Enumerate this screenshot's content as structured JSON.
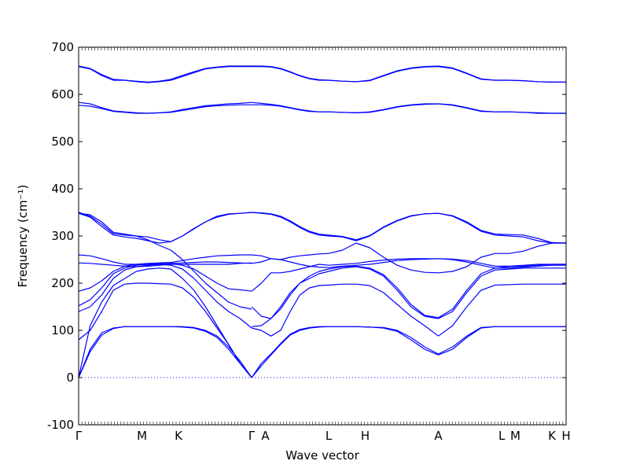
{
  "chart_data": {
    "type": "line",
    "xlabel": "Wave vector",
    "ylabel": "Frequency (cm⁻¹)",
    "ylim": [
      -100,
      700
    ],
    "grid": false,
    "y_ticks": [
      -100,
      0,
      100,
      200,
      300,
      400,
      500,
      600,
      700
    ],
    "x_ticks": [
      {
        "label": "Γ",
        "k": 0.0
      },
      {
        "label": "M",
        "k": 0.13
      },
      {
        "label": "K",
        "k": 0.205
      },
      {
        "label": "Γ",
        "k": 0.355
      },
      {
        "label": "A",
        "k": 0.383
      },
      {
        "label": "L",
        "k": 0.513
      },
      {
        "label": "H",
        "k": 0.588
      },
      {
        "label": "A",
        "k": 0.738
      },
      {
        "label": "L",
        "k": 0.868
      },
      {
        "label": "M",
        "k": 0.896
      },
      {
        "label": "K",
        "k": 0.971
      },
      {
        "label": "H",
        "k": 1.0
      }
    ],
    "xlim": [
      0,
      1
    ],
    "zero_line": {
      "y": 0,
      "style": "dotted"
    },
    "line_color": "#0000ff",
    "branch_pairs": [
      {
        "name": "",
        "ka": 0.0,
        "kb": 0.355,
        "lo": [
          0,
          108,
          108,
          0
        ],
        "hi": [
          0,
          108,
          108,
          0
        ],
        "series": [
          [
            0,
            60,
            95,
            105,
            108,
            108,
            108,
            108,
            108,
            107,
            105,
            98,
            85,
            60,
            30,
            0
          ],
          [
            0,
            55,
            90,
            104,
            108,
            108,
            108,
            108,
            108,
            108,
            106,
            100,
            88,
            65,
            35,
            0
          ]
        ]
      },
      {
        "name": "",
        "ka": 0.0,
        "kb": 0.355,
        "series": [
          [
            0,
            110,
            160,
            195,
            210,
            225,
            230,
            232,
            230,
            210,
            185,
            150,
            110,
            70,
            30,
            0
          ],
          [
            80,
            100,
            140,
            185,
            198,
            200,
            200,
            199,
            198,
            190,
            170,
            140,
            105,
            70,
            30,
            0
          ]
        ]
      },
      {
        "name": "",
        "ka": 0.0,
        "kb": 0.355,
        "series": [
          [
            140,
            150,
            175,
            210,
            228,
            235,
            238,
            240,
            238,
            230,
            210,
            185,
            160,
            140,
            125,
            105
          ],
          [
            152,
            165,
            190,
            220,
            232,
            238,
            240,
            241,
            242,
            243,
            244,
            245,
            245,
            244,
            243,
            242
          ]
        ]
      },
      {
        "name": "",
        "ka": 0.0,
        "kb": 0.355,
        "series": [
          [
            183,
            190,
            205,
            225,
            236,
            240,
            242,
            243,
            244,
            248,
            252,
            255,
            258,
            259,
            260,
            260
          ],
          [
            243,
            242,
            240,
            238,
            236,
            235,
            236,
            238,
            240,
            240,
            240,
            240,
            240,
            240,
            242,
            243
          ]
        ]
      },
      {
        "name": "",
        "ka": 0.0,
        "kb": 0.355,
        "series": [
          [
            260,
            258,
            252,
            245,
            240,
            240,
            241,
            242,
            241,
            238,
            230,
            215,
            200,
            188,
            186,
            183
          ],
          [
            348,
            340,
            320,
            302,
            298,
            295,
            290,
            285,
            288,
            300,
            315,
            330,
            340,
            346,
            348,
            350
          ]
        ]
      },
      {
        "name": "",
        "ka": 0.0,
        "kb": 0.355,
        "series": [
          [
            350,
            342,
            325,
            305,
            302,
            300,
            292,
            280,
            270,
            250,
            225,
            200,
            180,
            160,
            150,
            145
          ],
          [
            348,
            345,
            330,
            308,
            304,
            300,
            298,
            292,
            288,
            300,
            316,
            330,
            342,
            347,
            348,
            350
          ]
        ]
      },
      {
        "name": "",
        "ka": 0.0,
        "kb": 0.355,
        "series": [
          [
            583,
            580,
            572,
            565,
            563,
            561,
            560,
            561,
            563,
            568,
            572,
            576,
            578,
            580,
            581,
            583
          ],
          [
            577,
            575,
            570,
            564,
            562,
            560,
            560,
            561,
            562,
            566,
            570,
            574,
            576,
            577,
            578,
            578
          ]
        ]
      },
      {
        "name": "",
        "ka": 0.0,
        "kb": 0.355,
        "series": [
          [
            660,
            655,
            642,
            632,
            630,
            628,
            626,
            628,
            632,
            640,
            648,
            655,
            658,
            660,
            660,
            660
          ],
          [
            659,
            654,
            640,
            630,
            630,
            627,
            625,
            627,
            630,
            638,
            646,
            654,
            657,
            659,
            659,
            659
          ]
        ]
      }
    ],
    "segment_A_L": {
      "ka": 0.355,
      "kb": 0.513,
      "series": [
        [
          0,
          25,
          48,
          70,
          90,
          100,
          105,
          107,
          108
        ],
        [
          0,
          30,
          50,
          72,
          92,
          102,
          106,
          108,
          108
        ],
        [
          105,
          100,
          88,
          100,
          140,
          175,
          190,
          195,
          196
        ],
        [
          108,
          110,
          125,
          150,
          180,
          200,
          210,
          220,
          225
        ],
        [
          150,
          130,
          125,
          145,
          175,
          200,
          215,
          225,
          230
        ],
        [
          183,
          200,
          222,
          222,
          225,
          230,
          235,
          240,
          238
        ],
        [
          242,
          245,
          252,
          250,
          245,
          240,
          236,
          234,
          233
        ],
        [
          260,
          258,
          252,
          250,
          255,
          258,
          260,
          262,
          263
        ],
        [
          350,
          348,
          346,
          340,
          330,
          318,
          308,
          302,
          300
        ],
        [
          350,
          349,
          347,
          342,
          332,
          320,
          310,
          304,
          302
        ],
        [
          583,
          581,
          579,
          576,
          572,
          568,
          565,
          563,
          563
        ],
        [
          578,
          578,
          577,
          575,
          571,
          567,
          564,
          563,
          563
        ],
        [
          660,
          660,
          659,
          655,
          648,
          640,
          634,
          631,
          630
        ],
        [
          659,
          659,
          658,
          654,
          647,
          639,
          633,
          630,
          630
        ]
      ]
    },
    "segment_L_A": {
      "ka": 0.513,
      "kb": 0.738,
      "series": [
        [
          108,
          108,
          108,
          107,
          105,
          98,
          80,
          60,
          48
        ],
        [
          108,
          108,
          108,
          107,
          106,
          100,
          85,
          65,
          50
        ],
        [
          196,
          198,
          198,
          195,
          180,
          155,
          130,
          110,
          88
        ],
        [
          225,
          232,
          235,
          230,
          215,
          185,
          150,
          130,
          125
        ],
        [
          230,
          235,
          236,
          232,
          218,
          190,
          155,
          132,
          127
        ],
        [
          238,
          240,
          242,
          246,
          249,
          251,
          252,
          252,
          252
        ],
        [
          233,
          236,
          238,
          240,
          244,
          248,
          250,
          251,
          252
        ],
        [
          263,
          270,
          285,
          275,
          255,
          238,
          228,
          223,
          222
        ],
        [
          300,
          298,
          290,
          300,
          318,
          332,
          342,
          347,
          348
        ],
        [
          302,
          299,
          292,
          301,
          319,
          333,
          343,
          347,
          348
        ],
        [
          563,
          562,
          561,
          563,
          568,
          574,
          578,
          580,
          580
        ],
        [
          563,
          562,
          561,
          562,
          567,
          573,
          577,
          579,
          580
        ],
        [
          630,
          628,
          627,
          630,
          640,
          650,
          656,
          659,
          660
        ],
        [
          630,
          628,
          627,
          629,
          639,
          649,
          655,
          658,
          659
        ]
      ]
    },
    "segment_A_H": {
      "ka": 0.738,
      "kb": 1.0,
      "series": [
        [
          48,
          60,
          85,
          105,
          108,
          108,
          108,
          108,
          108,
          108
        ],
        [
          50,
          65,
          88,
          106,
          108,
          108,
          108,
          108,
          108,
          108
        ],
        [
          88,
          110,
          150,
          185,
          196,
          197,
          198,
          198,
          198,
          198
        ],
        [
          125,
          140,
          180,
          215,
          228,
          230,
          232,
          232,
          232,
          232
        ],
        [
          127,
          145,
          185,
          220,
          232,
          235,
          236,
          238,
          240,
          240
        ],
        [
          252,
          251,
          248,
          242,
          236,
          236,
          238,
          240,
          240,
          240
        ],
        [
          252,
          250,
          245,
          238,
          232,
          232,
          234,
          236,
          238,
          238
        ],
        [
          222,
          225,
          235,
          255,
          263,
          263,
          268,
          278,
          285,
          285
        ],
        [
          348,
          342,
          328,
          310,
          302,
          300,
          298,
          290,
          285,
          285
        ],
        [
          348,
          343,
          330,
          312,
          304,
          303,
          302,
          295,
          286,
          285
        ],
        [
          580,
          578,
          572,
          565,
          563,
          563,
          562,
          560,
          560,
          560
        ],
        [
          580,
          577,
          571,
          564,
          563,
          563,
          562,
          561,
          560,
          560
        ],
        [
          660,
          656,
          645,
          633,
          630,
          630,
          629,
          627,
          626,
          626
        ],
        [
          659,
          655,
          644,
          632,
          630,
          630,
          629,
          627,
          626,
          626
        ]
      ]
    }
  }
}
